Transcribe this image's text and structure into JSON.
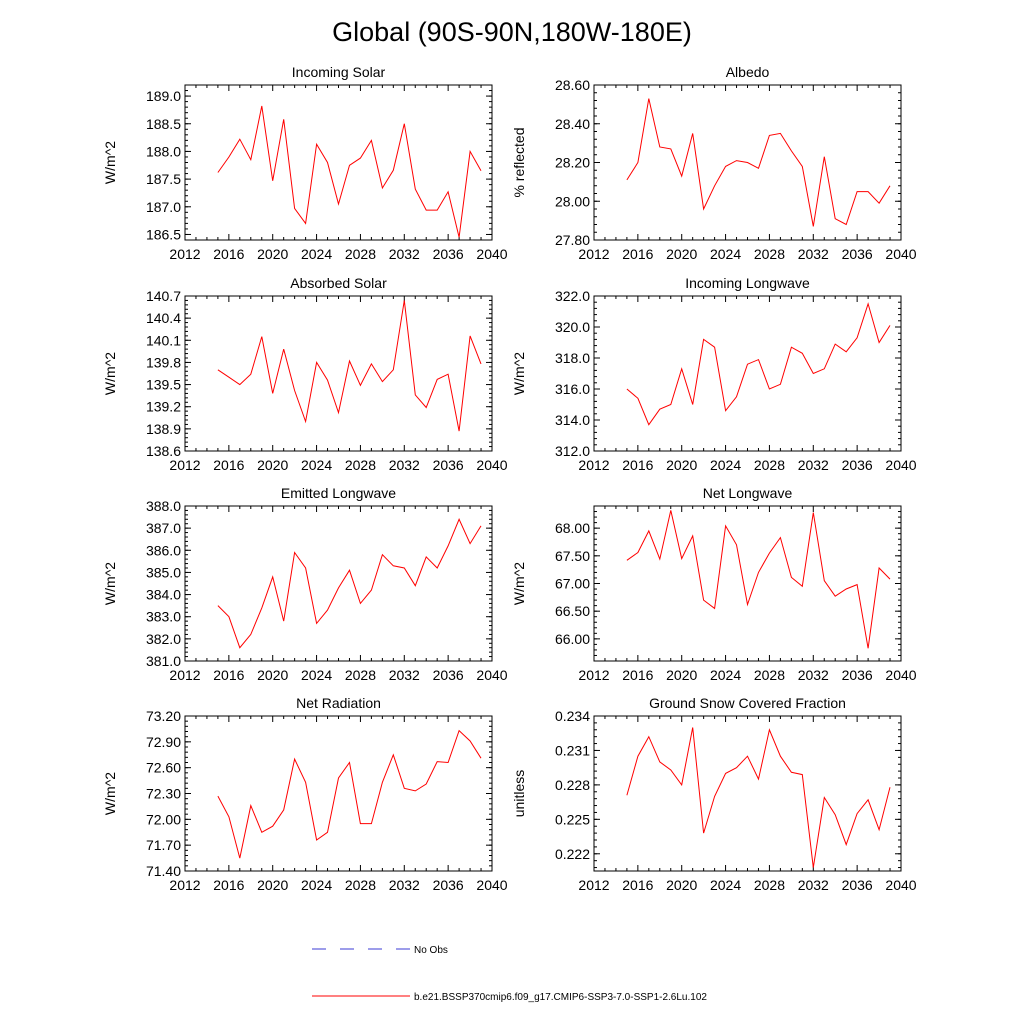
{
  "page_title": "Global (90S-90N,180W-180E)",
  "legend": {
    "obs_label": "No Obs",
    "obs_color": "#3b3bd6",
    "model_label": "b.e21.BSSP370cmip6.f09_g17.CMIP6-SSP3-7.0-SSP1-2.6Lu.102",
    "model_color": "#ff0000"
  },
  "chart_data": [
    {
      "type": "line",
      "title": "Incoming Solar",
      "ylabel": "W/m^2",
      "xlim": [
        2012,
        2040
      ],
      "xticks": [
        "2012",
        "2016",
        "2020",
        "2024",
        "2028",
        "2032",
        "2036",
        "2040"
      ],
      "ylim": [
        186.4,
        189.2
      ],
      "yticks": [
        "186.5",
        "187.0",
        "187.5",
        "188.0",
        "188.5",
        "189.0"
      ],
      "x": [
        2015,
        2016,
        2017,
        2018,
        2019,
        2020,
        2021,
        2022,
        2023,
        2024,
        2025,
        2026,
        2027,
        2028,
        2029,
        2030,
        2031,
        2032,
        2033,
        2034,
        2035,
        2036,
        2037,
        2038,
        2039
      ],
      "series": [
        {
          "values": [
            187.62,
            187.9,
            188.22,
            187.85,
            188.82,
            187.47,
            188.58,
            186.97,
            186.7,
            188.13,
            187.8,
            187.05,
            187.75,
            187.88,
            188.2,
            187.34,
            187.66,
            188.5,
            187.32,
            186.94,
            186.94,
            187.27,
            186.45,
            188.0,
            187.65
          ]
        }
      ]
    },
    {
      "type": "line",
      "title": "Albedo",
      "ylabel": "% reflected",
      "xlim": [
        2012,
        2040
      ],
      "xticks": [
        "2012",
        "2016",
        "2020",
        "2024",
        "2028",
        "2032",
        "2036",
        "2040"
      ],
      "ylim": [
        27.8,
        28.6
      ],
      "yticks": [
        "27.80",
        "28.00",
        "28.20",
        "28.40",
        "28.60"
      ],
      "x": [
        2015,
        2016,
        2017,
        2018,
        2019,
        2020,
        2021,
        2022,
        2023,
        2024,
        2025,
        2026,
        2027,
        2028,
        2029,
        2030,
        2031,
        2032,
        2033,
        2034,
        2035,
        2036,
        2037,
        2038,
        2039
      ],
      "series": [
        {
          "values": [
            28.11,
            28.2,
            28.53,
            28.28,
            28.27,
            28.13,
            28.35,
            27.96,
            28.08,
            28.18,
            28.21,
            28.2,
            28.17,
            28.34,
            28.35,
            28.26,
            28.18,
            27.87,
            28.23,
            27.91,
            27.88,
            28.05,
            28.05,
            27.99,
            28.08
          ]
        }
      ]
    },
    {
      "type": "line",
      "title": "Absorbed Solar",
      "ylabel": "W/m^2",
      "xlim": [
        2012,
        2040
      ],
      "xticks": [
        "2012",
        "2016",
        "2020",
        "2024",
        "2028",
        "2032",
        "2036",
        "2040"
      ],
      "ylim": [
        138.6,
        140.7
      ],
      "yticks": [
        "138.6",
        "138.9",
        "139.2",
        "139.5",
        "139.8",
        "140.1",
        "140.4",
        "140.7"
      ],
      "x": [
        2015,
        2016,
        2017,
        2018,
        2019,
        2020,
        2021,
        2022,
        2023,
        2024,
        2025,
        2026,
        2027,
        2028,
        2029,
        2030,
        2031,
        2032,
        2033,
        2034,
        2035,
        2036,
        2037,
        2038,
        2039
      ],
      "series": [
        {
          "values": [
            139.7,
            139.6,
            139.5,
            139.64,
            140.15,
            139.38,
            139.98,
            139.42,
            139.0,
            139.8,
            139.56,
            139.12,
            139.82,
            139.49,
            139.78,
            139.54,
            139.7,
            140.64,
            139.36,
            139.19,
            139.57,
            139.64,
            138.87,
            140.16,
            139.78
          ]
        }
      ]
    },
    {
      "type": "line",
      "title": "Incoming Longwave",
      "ylabel": "W/m^2",
      "xlim": [
        2012,
        2040
      ],
      "xticks": [
        "2012",
        "2016",
        "2020",
        "2024",
        "2028",
        "2032",
        "2036",
        "2040"
      ],
      "ylim": [
        312.0,
        322.0
      ],
      "yticks": [
        "312.0",
        "314.0",
        "316.0",
        "318.0",
        "320.0",
        "322.0"
      ],
      "x": [
        2015,
        2016,
        2017,
        2018,
        2019,
        2020,
        2021,
        2022,
        2023,
        2024,
        2025,
        2026,
        2027,
        2028,
        2029,
        2030,
        2031,
        2032,
        2033,
        2034,
        2035,
        2036,
        2037,
        2038,
        2039
      ],
      "series": [
        {
          "values": [
            316.0,
            315.4,
            313.7,
            314.7,
            315.0,
            317.3,
            315.0,
            319.2,
            318.7,
            314.6,
            315.5,
            317.6,
            317.9,
            316.0,
            316.3,
            318.7,
            318.3,
            317.0,
            317.3,
            318.9,
            318.4,
            319.3,
            321.5,
            319.0,
            320.1
          ]
        }
      ]
    },
    {
      "type": "line",
      "title": "Emitted Longwave",
      "ylabel": "W/m^2",
      "xlim": [
        2012,
        2040
      ],
      "xticks": [
        "2012",
        "2016",
        "2020",
        "2024",
        "2028",
        "2032",
        "2036",
        "2040"
      ],
      "ylim": [
        381.0,
        388.0
      ],
      "yticks": [
        "381.0",
        "382.0",
        "383.0",
        "384.0",
        "385.0",
        "386.0",
        "387.0",
        "388.0"
      ],
      "x": [
        2015,
        2016,
        2017,
        2018,
        2019,
        2020,
        2021,
        2022,
        2023,
        2024,
        2025,
        2026,
        2027,
        2028,
        2029,
        2030,
        2031,
        2032,
        2033,
        2034,
        2035,
        2036,
        2037,
        2038,
        2039
      ],
      "series": [
        {
          "values": [
            383.5,
            383.0,
            381.6,
            382.2,
            383.4,
            384.8,
            382.8,
            385.9,
            385.2,
            382.7,
            383.3,
            384.3,
            385.1,
            383.6,
            384.2,
            385.8,
            385.3,
            385.2,
            384.4,
            385.7,
            385.2,
            386.2,
            387.4,
            386.3,
            387.1
          ]
        }
      ]
    },
    {
      "type": "line",
      "title": "Net Longwave",
      "ylabel": "W/m^2",
      "xlim": [
        2012,
        2040
      ],
      "xticks": [
        "2012",
        "2016",
        "2020",
        "2024",
        "2028",
        "2032",
        "2036",
        "2040"
      ],
      "ylim": [
        65.6,
        68.4
      ],
      "yticks": [
        "66.00",
        "66.50",
        "67.00",
        "67.50",
        "68.00"
      ],
      "x": [
        2015,
        2016,
        2017,
        2018,
        2019,
        2020,
        2021,
        2022,
        2023,
        2024,
        2025,
        2026,
        2027,
        2028,
        2029,
        2030,
        2031,
        2032,
        2033,
        2034,
        2035,
        2036,
        2037,
        2038,
        2039
      ],
      "series": [
        {
          "values": [
            67.42,
            67.56,
            67.95,
            67.44,
            68.32,
            67.45,
            67.86,
            66.7,
            66.55,
            68.04,
            67.7,
            66.62,
            67.2,
            67.55,
            67.83,
            67.11,
            66.95,
            68.28,
            67.05,
            66.77,
            66.9,
            66.98,
            65.83,
            67.28,
            67.08
          ]
        }
      ]
    },
    {
      "type": "line",
      "title": "Net Radiation",
      "ylabel": "W/m^2",
      "xlim": [
        2012,
        2040
      ],
      "xticks": [
        "2012",
        "2016",
        "2020",
        "2024",
        "2028",
        "2032",
        "2036",
        "2040"
      ],
      "ylim": [
        71.4,
        73.2
      ],
      "yticks": [
        "71.40",
        "71.70",
        "72.00",
        "72.30",
        "72.60",
        "72.90",
        "73.20"
      ],
      "x": [
        2015,
        2016,
        2017,
        2018,
        2019,
        2020,
        2021,
        2022,
        2023,
        2024,
        2025,
        2026,
        2027,
        2028,
        2029,
        2030,
        2031,
        2032,
        2033,
        2034,
        2035,
        2036,
        2037,
        2038,
        2039
      ],
      "series": [
        {
          "values": [
            72.27,
            72.03,
            71.55,
            72.16,
            71.85,
            71.92,
            72.11,
            72.7,
            72.43,
            71.76,
            71.85,
            72.48,
            72.66,
            71.95,
            71.95,
            72.43,
            72.75,
            72.36,
            72.33,
            72.41,
            72.67,
            72.66,
            73.03,
            72.91,
            72.71
          ]
        }
      ]
    },
    {
      "type": "line",
      "title": "Ground Snow Covered Fraction",
      "ylabel": "unitless",
      "xlim": [
        2012,
        2040
      ],
      "xticks": [
        "2012",
        "2016",
        "2020",
        "2024",
        "2028",
        "2032",
        "2036",
        "2040"
      ],
      "ylim": [
        0.2205,
        0.234
      ],
      "yticks": [
        "0.222",
        "0.225",
        "0.228",
        "0.231",
        "0.234"
      ],
      "x": [
        2015,
        2016,
        2017,
        2018,
        2019,
        2020,
        2021,
        2022,
        2023,
        2024,
        2025,
        2026,
        2027,
        2028,
        2029,
        2030,
        2031,
        2032,
        2033,
        2034,
        2035,
        2036,
        2037,
        2038,
        2039
      ],
      "series": [
        {
          "values": [
            0.2271,
            0.2305,
            0.2322,
            0.23,
            0.2293,
            0.228,
            0.233,
            0.2238,
            0.227,
            0.229,
            0.2295,
            0.2305,
            0.2285,
            0.2328,
            0.2305,
            0.2291,
            0.2289,
            0.2208,
            0.2269,
            0.2254,
            0.2228,
            0.2255,
            0.2267,
            0.2241,
            0.2278
          ]
        }
      ]
    }
  ]
}
